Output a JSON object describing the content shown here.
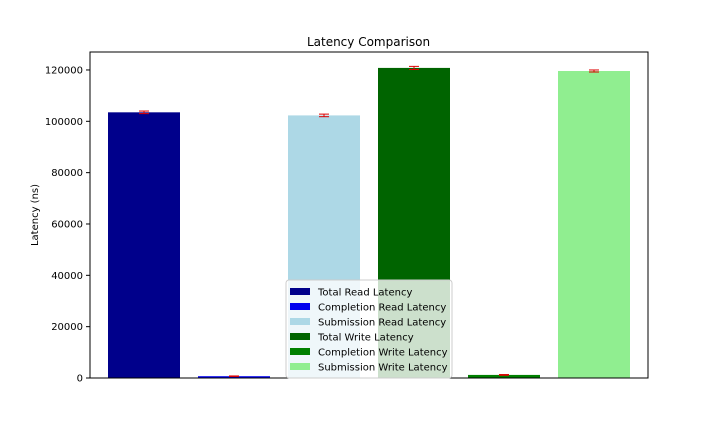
{
  "chart_data": {
    "type": "bar",
    "title": "Latency Comparison",
    "xlabel": "",
    "ylabel": "Latency (ns)",
    "ylim": [
      0,
      127000
    ],
    "yticks": [
      0,
      20000,
      40000,
      60000,
      80000,
      100000,
      120000
    ],
    "grid": false,
    "legend_position": "bottom-center",
    "error_bar_color": "#dd0000",
    "bars": [
      {
        "name": "Total Read Latency",
        "value": 103500,
        "error": 500,
        "color": "#00008b"
      },
      {
        "name": "Completion Read Latency",
        "value": 700,
        "error": 100,
        "color": "#0000ee"
      },
      {
        "name": "Submission Read Latency",
        "value": 102300,
        "error": 500,
        "color": "#add8e6"
      },
      {
        "name": "Total Write Latency",
        "value": 120800,
        "error": 600,
        "color": "#006400"
      },
      {
        "name": "Completion Write Latency",
        "value": 1200,
        "error": 150,
        "color": "#008000"
      },
      {
        "name": "Submission Write Latency",
        "value": 119600,
        "error": 400,
        "color": "#90ee90"
      }
    ]
  }
}
